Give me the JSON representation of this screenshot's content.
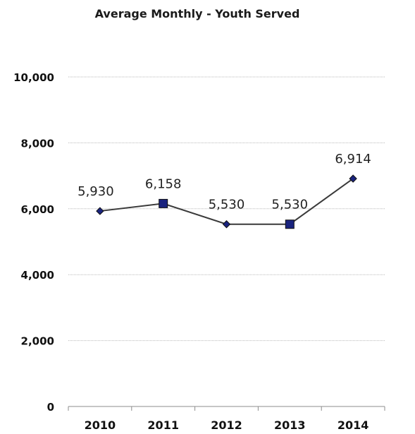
{
  "chart_data": {
    "type": "line",
    "title": "Average Monthly - Youth Served",
    "xlabel": "",
    "ylabel": "",
    "categories": [
      "2010",
      "2011",
      "2012",
      "2013",
      "2014"
    ],
    "series": [
      {
        "values": [
          5930,
          6158,
          5530,
          5530,
          6914
        ],
        "labels": [
          "5,930",
          "6,158",
          "5,530",
          "5,530",
          "6,914"
        ],
        "markers": [
          "diamond",
          "square",
          "diamond",
          "square",
          "diamond"
        ]
      }
    ],
    "ylim": [
      0,
      10000
    ],
    "yticks": [
      0,
      2000,
      4000,
      6000,
      8000,
      10000
    ],
    "ytick_labels": [
      "0",
      "2,000",
      "4,000",
      "6,000",
      "8,000",
      "10,000"
    ],
    "grid": true,
    "legend": "none",
    "colors": {
      "line": "#3a3a3a",
      "marker_fill": "#1a237e",
      "marker_stroke": "#111111",
      "grid": "#b9b9b9",
      "text": "#111111"
    }
  }
}
